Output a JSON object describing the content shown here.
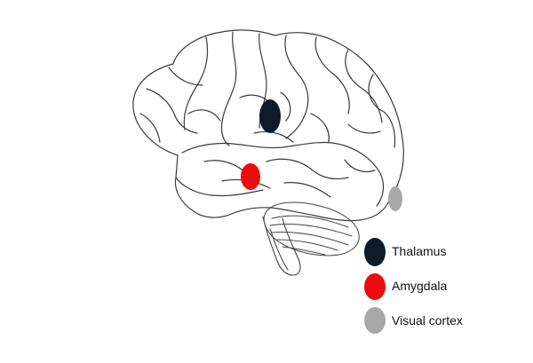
{
  "diagram": {
    "regions": [
      {
        "id": "thalamus",
        "label": "Thalamus",
        "color": "#0d1b2a"
      },
      {
        "id": "amygdala",
        "label": "Amygdala",
        "color": "#ee0b0b"
      },
      {
        "id": "visual_cortex",
        "label": "Visual cortex",
        "color": "#a8a8a8"
      }
    ]
  }
}
